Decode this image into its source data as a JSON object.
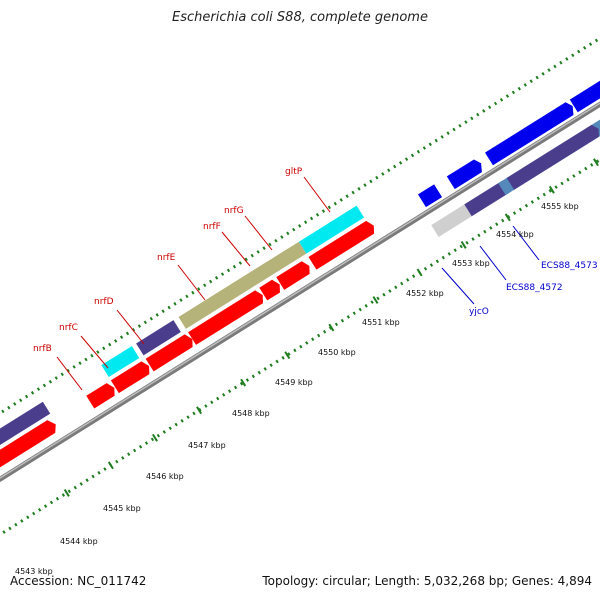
{
  "title": "Escherichia coli S88, complete genome",
  "footer": {
    "accession": "Accession: NC_011742",
    "summary": "Topology: circular; Length: 5,032,268 bp; Genes: 4,894"
  },
  "colors": {
    "backbone": "#8c8c8c",
    "dots": "#1e7d1e",
    "red": "#ff0000",
    "blue": "#0000ee",
    "navy": "#4a3e8c",
    "cyan": "#00e8f0",
    "olive": "#b5b37a",
    "steel": "#5588bb",
    "lavender": "#7a6fcf",
    "gray": "#cfcfcf",
    "label_red": "#cc0000",
    "label_blue": "#0000cc"
  },
  "ticks": [
    "4544 kbp",
    "4545 kbp",
    "4546 kbp",
    "4547 kbp",
    "4548 kbp",
    "4549 kbp",
    "4550 kbp",
    "4551 kbp",
    "4552 kbp",
    "4553 kbp",
    "4554 kbp",
    "4555 kbp"
  ],
  "partial_tick": "4543 kbp",
  "gene_labels_upper": [
    "nrfB",
    "nrfC",
    "nrfD",
    "nrfE",
    "nrfF",
    "nrfG",
    "gltP"
  ],
  "gene_labels_lower": [
    "yjcO",
    "ECS88_4572",
    "ECS88_4573"
  ]
}
